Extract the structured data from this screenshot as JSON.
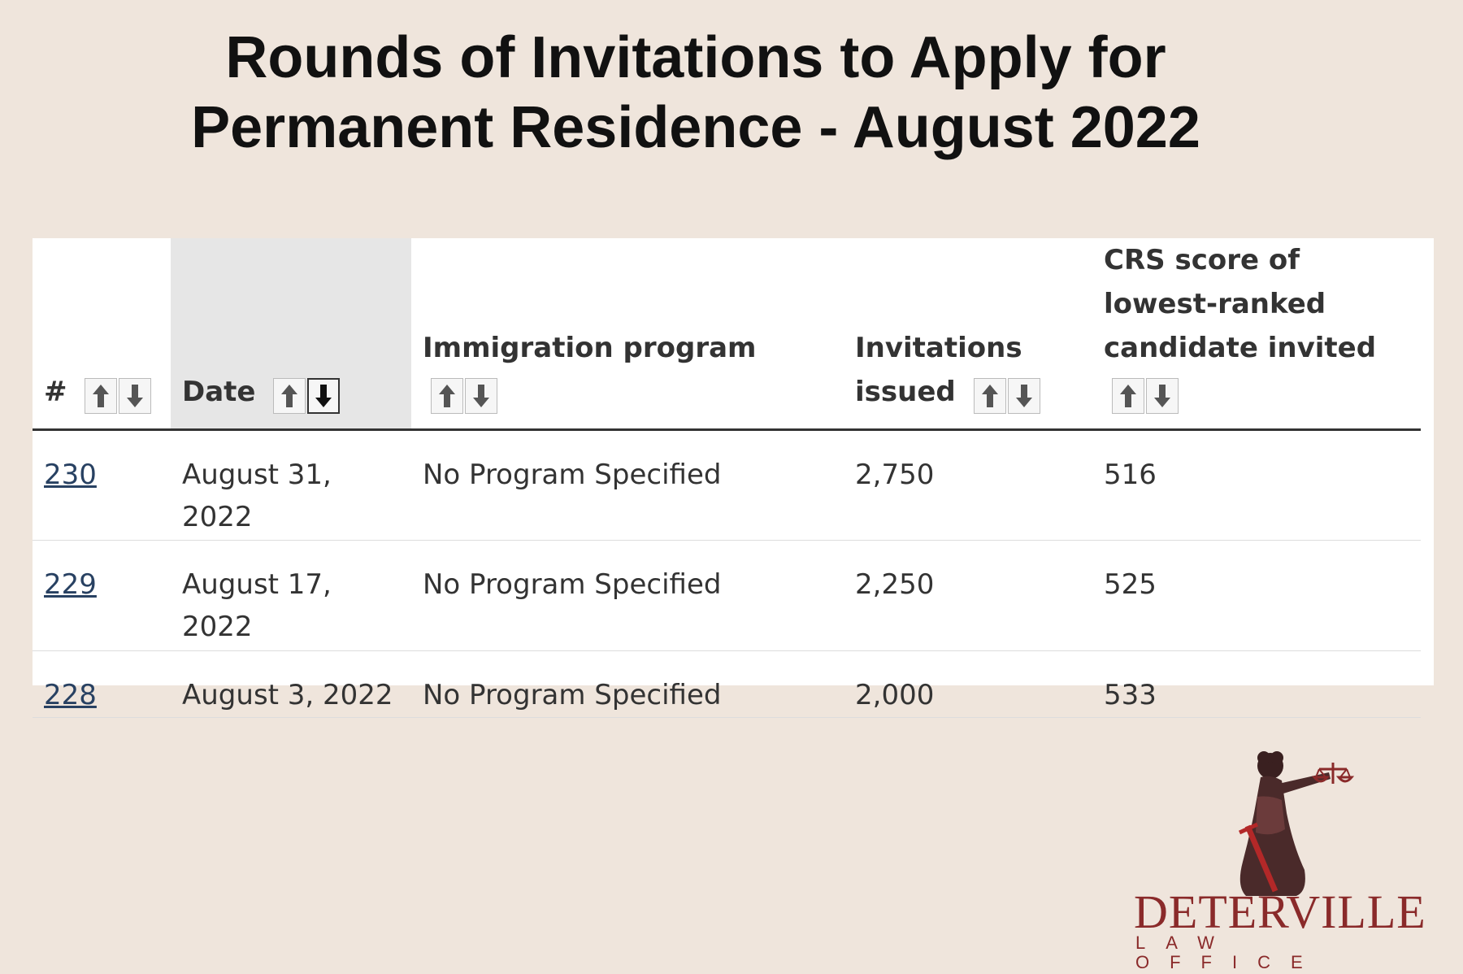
{
  "title": {
    "line1": "Rounds of Invitations to Apply for",
    "line2": "Permanent Residence - August 2022"
  },
  "table": {
    "columns": [
      {
        "label": "#",
        "sorted": false
      },
      {
        "label": "Date",
        "sorted": true,
        "sort_direction": "descending"
      },
      {
        "label": "Immigration program",
        "sorted": false
      },
      {
        "label": "Invitations issued",
        "sorted": false
      },
      {
        "label": "CRS score of lowest-ranked candidate invited",
        "sorted": false
      }
    ],
    "rows": [
      {
        "num": "230",
        "date": "August 31, 2022",
        "program": "No Program Specified",
        "invitations": "2,750",
        "crs": "516"
      },
      {
        "num": "229",
        "date": "August 17, 2022",
        "program": "No Program Specified",
        "invitations": "2,250",
        "crs": "525"
      },
      {
        "num": "228",
        "date": "August 3, 2022",
        "program": "No Program Specified",
        "invitations": "2,000",
        "crs": "533"
      }
    ],
    "sort_icons": {
      "up": "arrow-up-icon",
      "down": "arrow-down-icon"
    }
  },
  "logo": {
    "name": "DETERVILLE",
    "subtitle": "LAW OFFICE",
    "icon": "lady-justice-icon"
  },
  "colors": {
    "background": "#efe5dc",
    "link": "#284162",
    "sorted_header": "#e6e6e6",
    "brand": "#8a2a2a"
  }
}
